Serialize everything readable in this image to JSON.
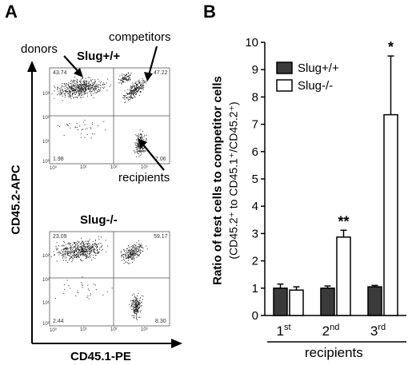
{
  "panel_a": {
    "letter": "A",
    "plot_top": {
      "title": "Slug+/+",
      "label_donors": "donors",
      "label_competitors": "competitors",
      "label_recipients": "recipients",
      "quadrants": {
        "upper_left": "43.74",
        "upper_right": "47.22",
        "lower_left": "1.98",
        "lower_right": "7.06"
      }
    },
    "plot_bottom": {
      "title": "Slug-/-",
      "quadrants": {
        "upper_left": "23.09",
        "upper_right": "59.17",
        "lower_left": "2.44",
        "lower_right": "8.30"
      }
    },
    "ticks_y": [
      "10³",
      "10²",
      "10¹",
      "10⁰"
    ],
    "ticks_x": [
      "10⁰",
      "10¹",
      "10²",
      "10³"
    ],
    "y_axis_label": "CD45.2-APC",
    "x_axis_label": "CD45.1-PE"
  },
  "panel_b": {
    "letter": "B",
    "recipients_label": "recipients",
    "significance": [
      "",
      "**",
      "*"
    ]
  },
  "chart_data": {
    "type": "bar",
    "ylabel": "Ratio of test cells to competitor cells",
    "ylabel_sub": "(CD45.2⁺ to CD45.1⁺/CD45.2⁺)",
    "xlabel": "recipients",
    "ylim": [
      0,
      10
    ],
    "yticks": [
      "0",
      "1",
      "2",
      "3",
      "4",
      "5",
      "6",
      "7",
      "8",
      "9",
      "10"
    ],
    "categories": [
      "1st",
      "2nd",
      "3rd"
    ],
    "category_parts": [
      [
        "1",
        "st"
      ],
      [
        "2",
        "nd"
      ],
      [
        "3",
        "rd"
      ]
    ],
    "series": [
      {
        "name": "Slug+/+",
        "color": "#3a3a3a",
        "values": [
          1.0,
          1.0,
          1.05
        ],
        "errors": [
          0.15,
          0.08,
          0.05
        ]
      },
      {
        "name": "Slug-/-",
        "color": "#ffffff",
        "values": [
          0.93,
          2.87,
          7.35
        ],
        "errors": [
          0.12,
          0.25,
          2.15
        ]
      }
    ],
    "legend_position": "top-left",
    "grid": false
  }
}
